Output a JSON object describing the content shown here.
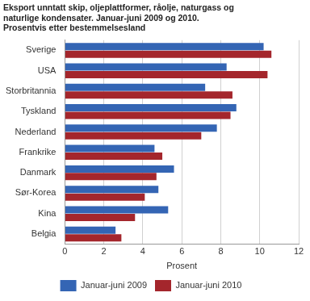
{
  "chart_data": {
    "type": "bar",
    "orientation": "horizontal",
    "title": [
      "Eksport unntatt skip, oljeplattformer, råolje, naturgass og",
      "naturlige kondensater. Januar-juni 2009 og 2010.",
      "Prosentvis etter bestemmelsesland"
    ],
    "categories": [
      "Sverige",
      "USA",
      "Storbritannia",
      "Tyskland",
      "Nederland",
      "Frankrike",
      "Danmark",
      "Sør-Korea",
      "Kina",
      "Belgia"
    ],
    "series": [
      {
        "name": "Januar-juni 2009",
        "color": "#3465b4",
        "values": [
          10.2,
          8.3,
          7.2,
          8.8,
          7.8,
          4.6,
          5.6,
          4.8,
          5.3,
          2.6
        ]
      },
      {
        "name": "Januar-juni 2010",
        "color": "#a4262c",
        "values": [
          10.6,
          10.4,
          8.6,
          8.5,
          7.0,
          5.0,
          4.7,
          4.1,
          3.6,
          2.9
        ]
      }
    ],
    "xlabel": "Prosent",
    "xlim": [
      0,
      12
    ],
    "xticks": [
      0,
      2,
      4,
      6,
      8,
      10,
      12
    ],
    "grid": true,
    "legend": "bottom"
  }
}
